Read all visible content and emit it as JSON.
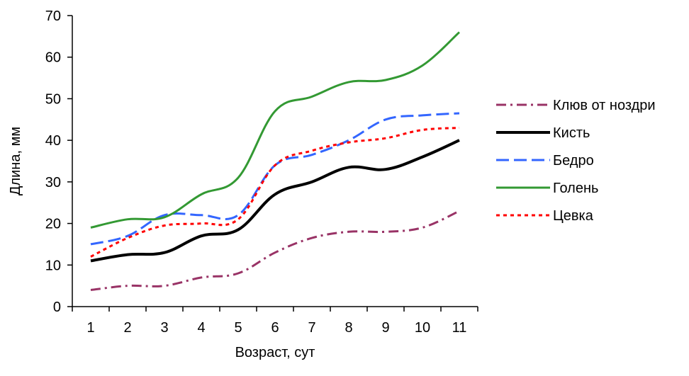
{
  "chart_data": {
    "type": "line",
    "xlabel": "Возраст, сут",
    "ylabel": "Длина, мм",
    "x": [
      1,
      2,
      3,
      4,
      5,
      6,
      7,
      8,
      9,
      10,
      11
    ],
    "xlim": [
      0.5,
      11.5
    ],
    "ylim": [
      0,
      70
    ],
    "yticks": [
      0,
      10,
      20,
      30,
      40,
      50,
      60,
      70
    ],
    "xtick_labels": [
      "1",
      "2",
      "3",
      "4",
      "5",
      "6",
      "7",
      "8",
      "9",
      "10",
      "11"
    ],
    "ytick_labels": [
      "0",
      "10",
      "20",
      "30",
      "40",
      "50",
      "60",
      "70"
    ],
    "grid": false,
    "legend_position": "right",
    "series": [
      {
        "name": "Клюв от ноздри",
        "color": "#993366",
        "dash": "dash-dot",
        "values": [
          4,
          5,
          5,
          7,
          8,
          13,
          16.5,
          18,
          18,
          19,
          23
        ]
      },
      {
        "name": "Кисть",
        "color": "#000000",
        "dash": "solid",
        "values": [
          11,
          12.5,
          13,
          17,
          18.5,
          27,
          30,
          33.5,
          33,
          36,
          40
        ]
      },
      {
        "name": "Бедро",
        "color": "#3366ff",
        "dash": "long-dash",
        "values": [
          15,
          17,
          22,
          22,
          22,
          34,
          36.5,
          40,
          45,
          46,
          46.5
        ]
      },
      {
        "name": "Голень",
        "color": "#339933",
        "dash": "solid",
        "values": [
          19,
          21,
          21.5,
          27,
          31,
          47,
          50.5,
          54,
          54.5,
          58,
          66
        ]
      },
      {
        "name": "Цевка",
        "color": "#ff0000",
        "dash": "dot",
        "values": [
          12,
          16.5,
          19.5,
          20,
          21,
          34,
          37.5,
          39.5,
          40.5,
          42.5,
          43
        ]
      }
    ]
  }
}
